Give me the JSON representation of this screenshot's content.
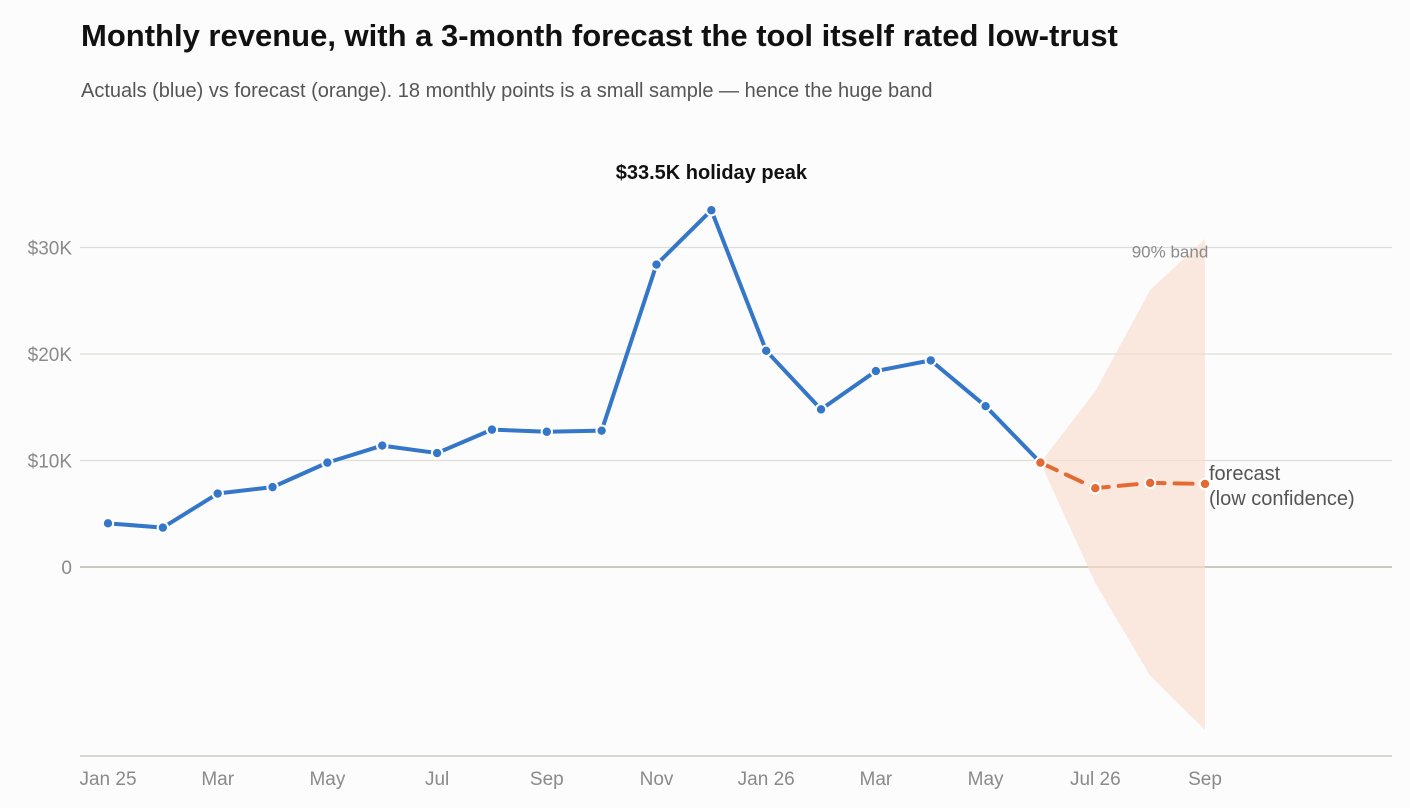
{
  "chart_data": {
    "type": "line",
    "title": "Monthly revenue, with a 3-month forecast the tool itself rated low-trust",
    "subtitle": "Actuals (blue) vs forecast (orange). 18 monthly points is a small sample — hence the huge band",
    "x_tick_labels": [
      "Jan 25",
      "Mar",
      "May",
      "Jul",
      "Sep",
      "Nov",
      "Jan 26",
      "Mar",
      "May",
      "Jul 26",
      "Sep"
    ],
    "x_tick_months": [
      "2025-01",
      "2025-03",
      "2025-05",
      "2025-07",
      "2025-09",
      "2025-11",
      "2026-01",
      "2026-03",
      "2026-05",
      "2026-07",
      "2026-09"
    ],
    "xlim": [
      "2025-01",
      "2026-10"
    ],
    "y_tick_labels": [
      "0",
      "$10K",
      "$20K",
      "$30K"
    ],
    "y_tick_values": [
      0,
      10000,
      20000,
      30000
    ],
    "ylim": [
      -18000,
      38000
    ],
    "grid": "horizontal",
    "series": [
      {
        "role": "actual",
        "color": "#3476c8",
        "points": [
          {
            "x": "2025-01",
            "y": 4100
          },
          {
            "x": "2025-02",
            "y": 3700
          },
          {
            "x": "2025-03",
            "y": 6900
          },
          {
            "x": "2025-04",
            "y": 7500
          },
          {
            "x": "2025-05",
            "y": 9800
          },
          {
            "x": "2025-06",
            "y": 11400
          },
          {
            "x": "2025-07",
            "y": 10700
          },
          {
            "x": "2025-08",
            "y": 12900
          },
          {
            "x": "2025-09",
            "y": 12700
          },
          {
            "x": "2025-10",
            "y": 12800
          },
          {
            "x": "2025-11",
            "y": 28400
          },
          {
            "x": "2025-12",
            "y": 33500
          },
          {
            "x": "2026-01",
            "y": 20300
          },
          {
            "x": "2026-02",
            "y": 14800
          },
          {
            "x": "2026-03",
            "y": 18400
          },
          {
            "x": "2026-04",
            "y": 19400
          },
          {
            "x": "2026-05",
            "y": 15100
          },
          {
            "x": "2026-06",
            "y": 9800
          }
        ]
      },
      {
        "role": "forecast",
        "color": "#e46a34",
        "points": [
          {
            "x": "2026-06",
            "y": 9800
          },
          {
            "x": "2026-07",
            "y": 7400
          },
          {
            "x": "2026-08",
            "y": 7900
          },
          {
            "x": "2026-09",
            "y": 7800
          }
        ]
      }
    ],
    "band": {
      "label": "90% band",
      "color": "#f9dccd",
      "points": [
        {
          "x": "2026-06",
          "low": 9800,
          "high": 9800
        },
        {
          "x": "2026-07",
          "low": -1500,
          "high": 16500
        },
        {
          "x": "2026-08",
          "low": -10200,
          "high": 26000
        },
        {
          "x": "2026-09",
          "low": -15300,
          "high": 30800
        }
      ]
    },
    "annotations": [
      {
        "text": "$33.5K holiday peak",
        "x": "2025-12",
        "y": 33500
      },
      {
        "text_lines": [
          "forecast",
          "(low confidence)"
        ],
        "x": "2026-09",
        "y": 7800
      }
    ]
  }
}
